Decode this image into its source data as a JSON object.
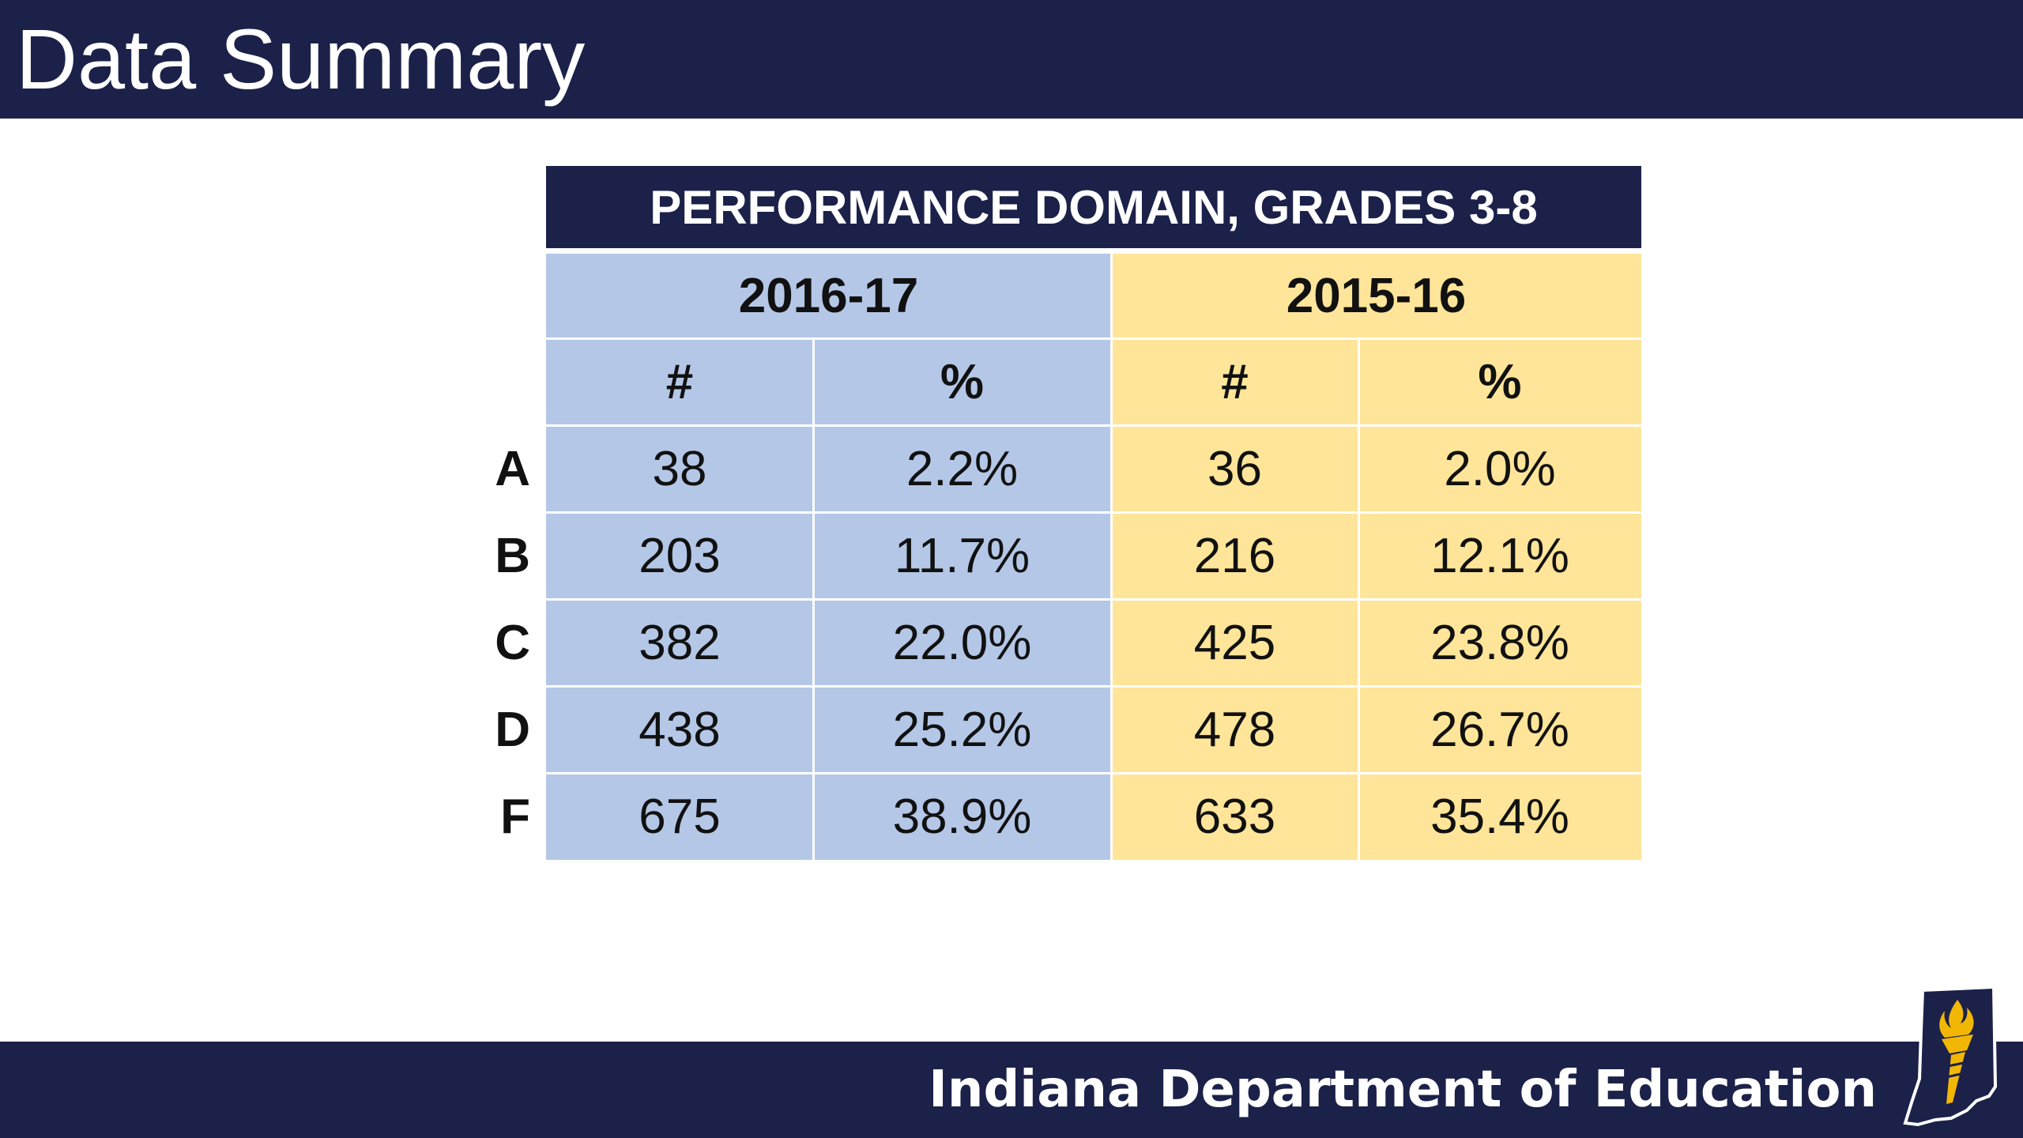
{
  "slide": {
    "title": "Data Summary"
  },
  "table": {
    "title": "PERFORMANCE DOMAIN, GRADES 3-8",
    "years": [
      "2016-17",
      "2015-16"
    ],
    "subheaders": [
      "#",
      "%",
      "#",
      "%"
    ],
    "rows": [
      {
        "grade": "A",
        "n_2017": "38",
        "pct_2017": "2.2%",
        "n_2016": "36",
        "pct_2016": "2.0%"
      },
      {
        "grade": "B",
        "n_2017": "203",
        "pct_2017": "11.7%",
        "n_2016": "216",
        "pct_2016": "12.1%"
      },
      {
        "grade": "C",
        "n_2017": "382",
        "pct_2017": "22.0%",
        "n_2016": "425",
        "pct_2016": "23.8%"
      },
      {
        "grade": "D",
        "n_2017": "438",
        "pct_2017": "25.2%",
        "n_2016": "478",
        "pct_2016": "26.7%"
      },
      {
        "grade": "F",
        "n_2017": "675",
        "pct_2017": "38.9%",
        "n_2016": "633",
        "pct_2016": "35.4%"
      }
    ]
  },
  "footer": {
    "organization": "Indiana Department of Education",
    "logo_icon": "indiana-torch-logo-icon"
  },
  "colors": {
    "navy": "#1b2149",
    "blue": "#b4c7e7",
    "yellow": "#ffe599",
    "gold": "#f2b705"
  }
}
